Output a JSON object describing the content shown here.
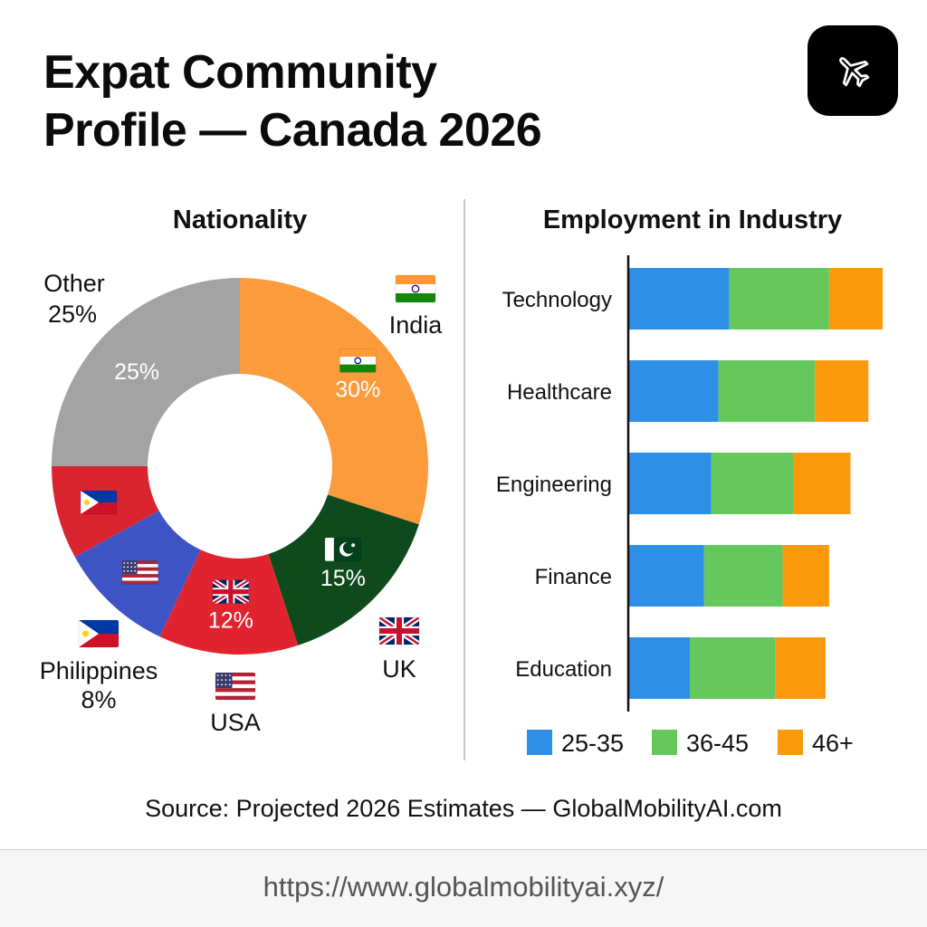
{
  "title_line1": "Expat Community",
  "title_line2": "Profile — Canada 2026",
  "logo_icon": "airplane-icon",
  "source_text": "Source: Projected 2026 Estimates — GlobalMobilityAI.com",
  "url_text": "https://www.globalmobilityai.xyz/",
  "chart_data": [
    {
      "type": "pie",
      "title": "Nationality",
      "start_angle_deg": 0,
      "slices": [
        {
          "label": "India",
          "value": 30,
          "inner_label": "30%",
          "outer_label": "India",
          "color": "#fb9b3c",
          "flag": "india-flag-icon"
        },
        {
          "label": "UK",
          "value": 15,
          "inner_label": "15%",
          "outer_label": "UK",
          "color": "#0f4a1c",
          "flag": "pakistan-flag-icon",
          "outer_flag": "uk-flag-icon"
        },
        {
          "label": "USA",
          "value": 12,
          "inner_label": "12%",
          "outer_label": "USA",
          "color": "#e0242f",
          "flag": "uk-flag-icon",
          "outer_flag": "usa-flag-icon"
        },
        {
          "label": "Philippines",
          "value": 10,
          "inner_label": "",
          "outer_label": "Philippines",
          "outer_value": "8%",
          "color": "#3f54c4",
          "flag": "usa-flag-icon",
          "outer_flag": "philippines-flag-icon"
        },
        {
          "label": "Philippines-red",
          "value": 8,
          "inner_label": "",
          "outer_label": "",
          "color": "#d9242f",
          "flag": "philippines-flag-icon"
        },
        {
          "label": "Other",
          "value": 25,
          "inner_label": "25%",
          "outer_label": "Other",
          "outer_value": "25%",
          "color": "#a3a3a3"
        }
      ]
    },
    {
      "type": "bar",
      "orientation": "horizontal",
      "stacked": true,
      "title": "Employment in Industry",
      "categories": [
        "Technology",
        "Healthcare",
        "Engineering",
        "Finance",
        "Education"
      ],
      "series": [
        {
          "name": "25-35",
          "color": "#2e8fe6",
          "values": [
            28,
            25,
            23,
            21,
            17
          ]
        },
        {
          "name": "36-45",
          "color": "#66c85c",
          "values": [
            28,
            27,
            23,
            22,
            24
          ]
        },
        {
          "name": "46+",
          "color": "#fb9a0d",
          "values": [
            15,
            15,
            16,
            13,
            14
          ]
        }
      ],
      "xlim": [
        0,
        72
      ],
      "legend": "bottom"
    }
  ]
}
